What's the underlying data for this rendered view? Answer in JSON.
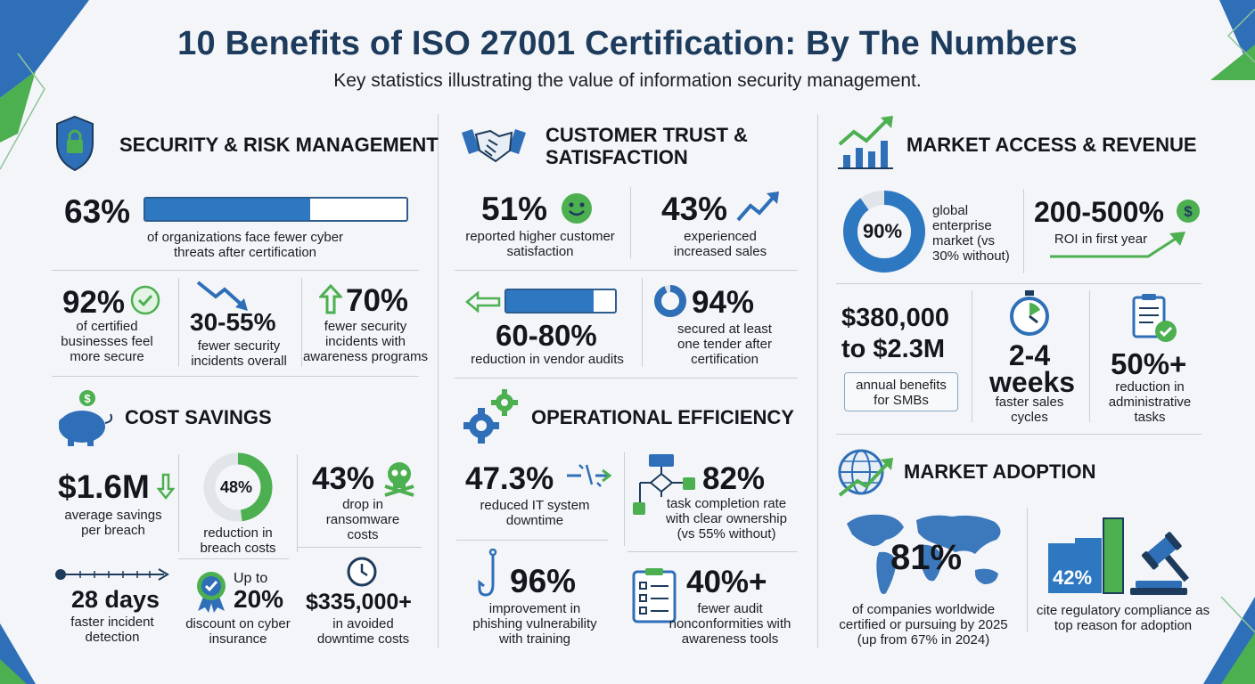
{
  "header": {
    "title": "10 Benefits of ISO 27001 Certification: By The Numbers",
    "subtitle": "Key statistics illustrating the value of information security management."
  },
  "colors": {
    "navy": "#1d3b5c",
    "blue": "#2e78c2",
    "green": "#4caf50",
    "light_gray": "#e3e6ea"
  },
  "security": {
    "title": "SECURITY & RISK MANAGEMENT",
    "s1": {
      "value": "63%",
      "label": "of organizations face fewer cyber threats after certification",
      "fill": 0.63
    },
    "s2": {
      "value": "92%",
      "label": "of certified businesses feel more secure"
    },
    "s3": {
      "value": "30-55%",
      "label": "fewer security incidents overall"
    },
    "s4": {
      "value": "70%",
      "label": "fewer security incidents with awareness programs"
    }
  },
  "cost": {
    "title": "COST SAVINGS",
    "s1": {
      "value": "$1.6M",
      "label": "average savings per breach"
    },
    "s2": {
      "value": "48%",
      "label": "reduction in breach costs",
      "fill": 0.48
    },
    "s3": {
      "value": "43%",
      "label": "drop in ransomware costs"
    },
    "s4": {
      "value": "28 days",
      "label": "faster incident detection"
    },
    "s5": {
      "prefix": "Up to",
      "value": "20%",
      "label": "discount on cyber insurance"
    },
    "s6": {
      "value": "$335,000+",
      "label": "in avoided downtime costs"
    }
  },
  "trust": {
    "title": "CUSTOMER TRUST & SATISFACTION",
    "s1": {
      "value": "51%",
      "label": "reported higher customer satisfaction"
    },
    "s2": {
      "value": "43%",
      "label": "experienced increased sales"
    },
    "s3": {
      "value": "60-80%",
      "label": "reduction in vendor audits",
      "fill": 0.8
    },
    "s4": {
      "value": "94%",
      "label": "secured at least one tender after certification",
      "fill": 0.94
    }
  },
  "operational": {
    "title": "OPERATIONAL EFFICIENCY",
    "s1": {
      "value": "47.3%",
      "label": "reduced IT system downtime"
    },
    "s2": {
      "value": "82%",
      "label": "task completion rate with clear ownership (vs 55% without)"
    },
    "s3": {
      "value": "96%",
      "label": "improvement in phishing vulnerability with training"
    },
    "s4": {
      "value": "40%+",
      "label": "fewer audit nonconformities with awareness tools"
    }
  },
  "market_access": {
    "title": "MARKET ACCESS & REVENUE",
    "s1": {
      "value": "90%",
      "label": "global enterprise market (vs 30% without)",
      "fill": 0.9
    },
    "s2": {
      "value": "200-500%",
      "label": "ROI in first year"
    },
    "s3": {
      "value": "$380,000 to $2.3M",
      "label": "annual benefits for SMBs"
    },
    "s4": {
      "value": "2-4 weeks",
      "label": "faster sales cycles"
    },
    "s5": {
      "value": "50%+",
      "label": "reduction in administrative tasks"
    }
  },
  "adoption": {
    "title": "MARKET ADOPTION",
    "s1": {
      "value": "81%",
      "label": "of companies worldwide certified or pursuing by 2025 (up from 67% in 2024)"
    },
    "s2": {
      "value": "42%",
      "label": "cite regulatory compliance as top reason for adoption"
    }
  }
}
